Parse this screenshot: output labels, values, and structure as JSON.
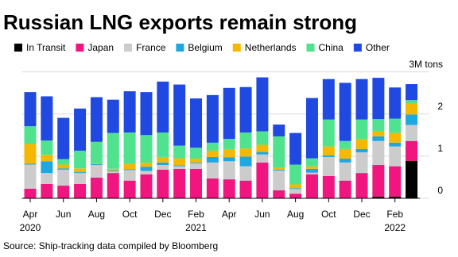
{
  "chart_data": {
    "type": "stacked_bar",
    "title": "Russian LNG exports remain strong",
    "source": "Source: Ship-tracking data compiled by Bloomberg",
    "categories": [
      "Apr\n2020",
      null,
      "Jun",
      null,
      "Aug",
      null,
      "Oct",
      null,
      "Dec",
      null,
      "Feb\n2021",
      null,
      "Apr",
      null,
      "Jun",
      null,
      "Aug",
      null,
      "Oct",
      null,
      "Dec",
      null,
      "Feb\n2022",
      null
    ],
    "series": [
      {
        "name": "In Transit",
        "color": "#000000",
        "values": [
          0,
          0,
          0,
          0,
          0,
          0,
          0,
          0,
          0,
          0,
          0,
          0,
          0,
          0,
          0,
          0,
          0,
          0,
          0,
          0,
          0,
          0.04,
          0.04,
          0.89
        ]
      },
      {
        "name": "Japan",
        "color": "#f0157f",
        "values": [
          0.23,
          0.34,
          0.3,
          0.34,
          0.49,
          0.6,
          0.42,
          0.57,
          0.68,
          0.7,
          0.7,
          0.47,
          0.45,
          0.42,
          0.85,
          0.19,
          0.11,
          0.57,
          0.53,
          0.42,
          0.6,
          0.75,
          0.72,
          0.47
        ]
      },
      {
        "name": "France",
        "color": "#cccccc",
        "values": [
          0.57,
          0.26,
          0.38,
          0.26,
          0.3,
          0.04,
          0.25,
          0.08,
          0.11,
          0.06,
          0.13,
          0.38,
          0.43,
          0.34,
          0.19,
          0.47,
          0.11,
          0.04,
          0.45,
          0.43,
          0.49,
          0.57,
          0.47,
          0.38
        ]
      },
      {
        "name": "Belgium",
        "color": "#1ea7e1",
        "values": [
          0.02,
          0.28,
          0.03,
          0.02,
          0.02,
          0.02,
          0.02,
          0.1,
          0.06,
          0.02,
          0.02,
          0.13,
          0.09,
          0.23,
          0.06,
          0.02,
          0.02,
          0.09,
          0.04,
          0.09,
          0.08,
          0.11,
          0.09,
          0.25
        ]
      },
      {
        "name": "Netherlands",
        "color": "#f5b800",
        "values": [
          0.47,
          0.15,
          0.09,
          0.09,
          0.02,
          0.04,
          0.13,
          0.09,
          0.13,
          0.17,
          0.09,
          0.15,
          0.19,
          0.19,
          0.17,
          0.04,
          0.09,
          0.06,
          0.21,
          0.23,
          0.23,
          0.13,
          0.23,
          0.26
        ]
      },
      {
        "name": "China",
        "color": "#50e38f",
        "values": [
          0.42,
          0.34,
          0.13,
          0.42,
          0.51,
          0.85,
          0.74,
          0.66,
          0.58,
          0.3,
          0.26,
          0.19,
          0.25,
          0.38,
          0.32,
          0.75,
          0.47,
          0.19,
          0.64,
          0.19,
          0.47,
          0.28,
          0.34,
          0.08
        ]
      },
      {
        "name": "Other",
        "color": "#1f49e0",
        "values": [
          0.81,
          1.05,
          0.98,
          1.0,
          1.06,
          0.79,
          0.98,
          1.02,
          1.21,
          1.45,
          1.17,
          1.13,
          1.21,
          1.08,
          1.28,
          0.28,
          0.75,
          1.43,
          0.96,
          1.38,
          0.96,
          0.98,
          0.74,
          0.38
        ]
      }
    ],
    "ylim": [
      0,
      3.2
    ],
    "yticks": [
      0,
      1,
      2,
      {
        "value": 3,
        "label": "3M tons"
      }
    ],
    "grid": true
  }
}
